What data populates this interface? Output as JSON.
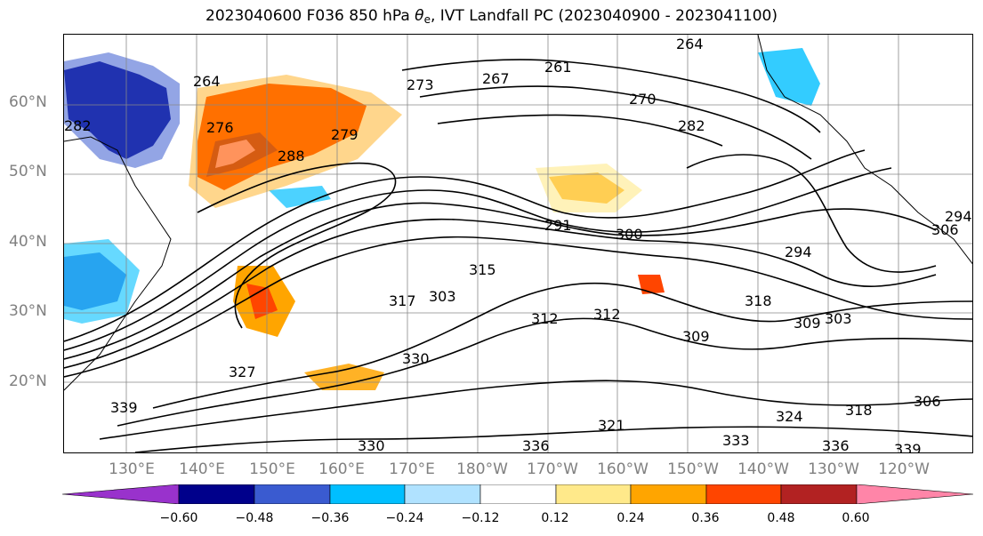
{
  "title": {
    "prefix": "2023040600 F036 850 hPa ",
    "theta": "θ",
    "theta_sub": "e",
    "suffix": ", IVT Landfall PC (2023040900 - 2023041100)"
  },
  "map": {
    "lat_labels": [
      "60°N",
      "50°N",
      "40°N",
      "30°N",
      "20°N"
    ],
    "lon_labels": [
      "130°E",
      "140°E",
      "150°E",
      "160°E",
      "170°E",
      "180°W",
      "170°W",
      "160°W",
      "150°W",
      "140°W",
      "130°W",
      "120°W"
    ],
    "contour_labels": [
      "264",
      "276",
      "273",
      "261",
      "267",
      "264",
      "270",
      "282",
      "282",
      "279",
      "288",
      "291",
      "300",
      "294",
      "294",
      "303",
      "315",
      "317",
      "318",
      "309",
      "303",
      "312",
      "312",
      "309",
      "327",
      "330",
      "324",
      "318",
      "306",
      "330",
      "336",
      "333",
      "336",
      "339",
      "339",
      "321",
      "306"
    ]
  },
  "colorbar": {
    "colors": [
      "#9932CC",
      "#00008B",
      "#3A5BD0",
      "#00BFFF",
      "#B0E2FF",
      "#FFFFFF",
      "#FFE98A",
      "#FFA500",
      "#FF4500",
      "#B22222",
      "#FF85A8"
    ],
    "tick_labels": [
      "−0.60",
      "−0.48",
      "−0.36",
      "−0.24",
      "−0.12",
      "0.12",
      "0.24",
      "0.36",
      "0.48",
      "0.60"
    ]
  }
}
